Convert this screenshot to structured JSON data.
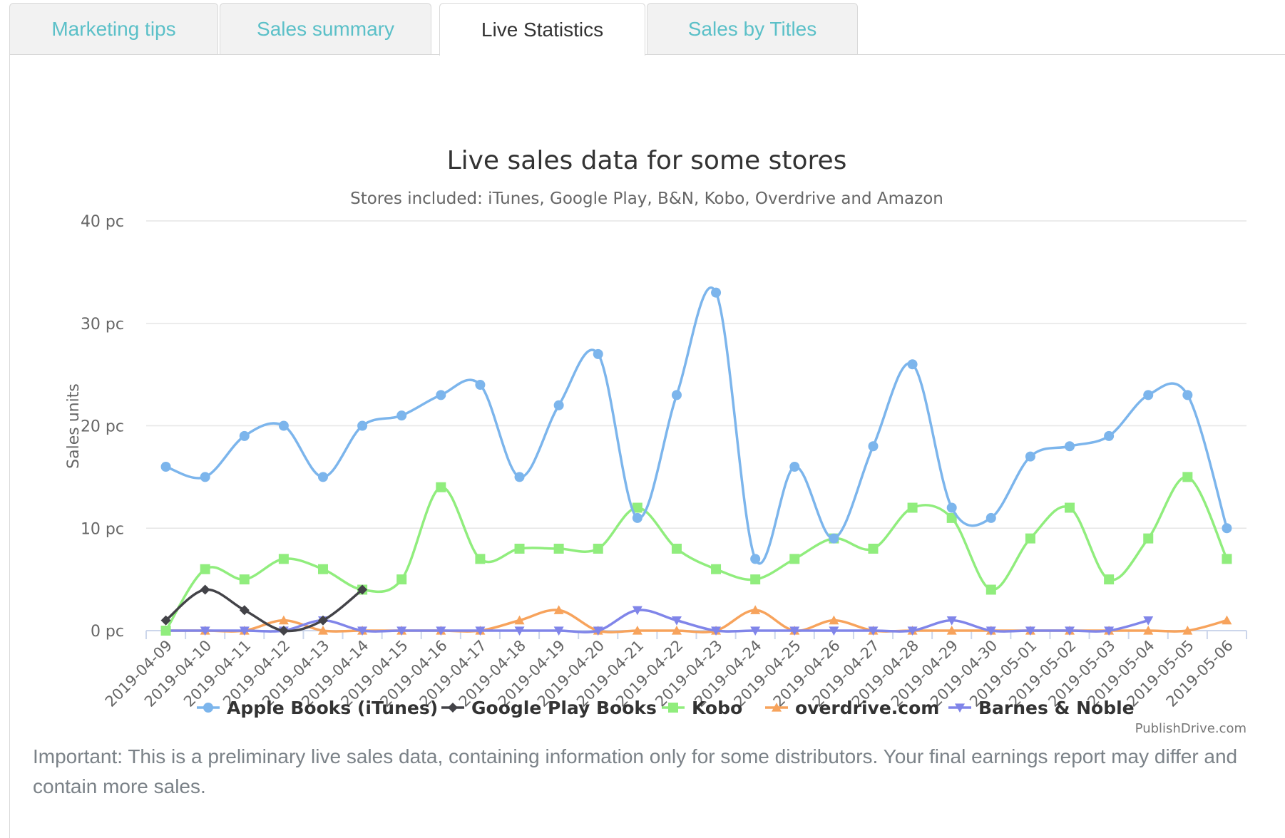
{
  "tabs": [
    {
      "label": "Marketing tips",
      "active": false
    },
    {
      "label": "Sales summary",
      "active": false
    },
    {
      "label": "Live Statistics",
      "active": true
    },
    {
      "label": "Sales by Titles",
      "active": false
    }
  ],
  "chart_data": {
    "type": "line",
    "title": "Live sales data for some stores",
    "subtitle": "Stores included: iTunes, Google Play, B&N, Kobo, Overdrive and Amazon",
    "ylabel": "Sales units",
    "xlabel": "",
    "ylim": [
      0,
      40
    ],
    "yticks": [
      0,
      10,
      20,
      30,
      40
    ],
    "y_tick_suffix": " pc",
    "grid": true,
    "legend_position": "bottom",
    "credits": "PublishDrive.com",
    "categories": [
      "2019-04-09",
      "2019-04-10",
      "2019-04-11",
      "2019-04-12",
      "2019-04-13",
      "2019-04-14",
      "2019-04-15",
      "2019-04-16",
      "2019-04-17",
      "2019-04-18",
      "2019-04-19",
      "2019-04-20",
      "2019-04-21",
      "2019-04-22",
      "2019-04-23",
      "2019-04-24",
      "2019-04-25",
      "2019-04-26",
      "2019-04-27",
      "2019-04-28",
      "2019-04-29",
      "2019-04-30",
      "2019-05-01",
      "2019-05-02",
      "2019-05-03",
      "2019-05-04",
      "2019-05-05",
      "2019-05-06"
    ],
    "series": [
      {
        "name": "Apple Books (iTunes)",
        "color": "#7cb5ec",
        "marker": "circle",
        "values": [
          16,
          15,
          19,
          20,
          15,
          20,
          21,
          23,
          24,
          15,
          22,
          27,
          11,
          23,
          33,
          7,
          16,
          9,
          18,
          26,
          12,
          11,
          17,
          18,
          19,
          23,
          23,
          10
        ]
      },
      {
        "name": "Google Play Books",
        "color": "#434348",
        "marker": "diamond",
        "values": [
          1,
          4,
          2,
          0,
          1,
          4,
          null,
          null,
          null,
          null,
          null,
          null,
          null,
          null,
          null,
          null,
          null,
          null,
          null,
          null,
          null,
          null,
          null,
          null,
          null,
          null,
          null,
          null
        ]
      },
      {
        "name": "Kobo",
        "color": "#90ed7d",
        "marker": "square",
        "values": [
          0,
          6,
          5,
          7,
          6,
          4,
          5,
          14,
          7,
          8,
          8,
          8,
          12,
          8,
          6,
          5,
          7,
          9,
          8,
          12,
          11,
          4,
          9,
          12,
          5,
          9,
          15,
          7
        ]
      },
      {
        "name": "overdrive.com",
        "color": "#f7a35c",
        "marker": "triangle",
        "values": [
          0,
          0,
          0,
          1,
          0,
          0,
          0,
          0,
          0,
          1,
          2,
          0,
          0,
          0,
          0,
          2,
          0,
          1,
          0,
          0,
          0,
          0,
          0,
          0,
          0,
          0,
          0,
          1
        ]
      },
      {
        "name": "Barnes & Noble",
        "color": "#8085e9",
        "marker": "triangle-down",
        "values": [
          0,
          0,
          0,
          0,
          1,
          0,
          0,
          0,
          0,
          0,
          0,
          0,
          2,
          1,
          0,
          0,
          0,
          0,
          0,
          0,
          1,
          0,
          0,
          0,
          0,
          1,
          null,
          null
        ]
      }
    ]
  },
  "note": "Important: This is a preliminary live sales data, containing information only for some distributors. Your final earnings report may differ and contain more sales."
}
